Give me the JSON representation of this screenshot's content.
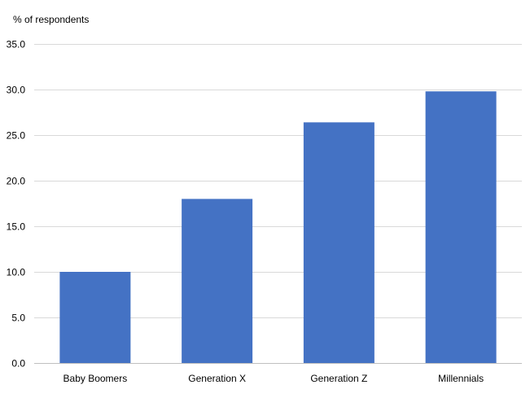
{
  "chart_data": {
    "type": "bar",
    "title": "",
    "xlabel": "",
    "ylabel": "% of respondents",
    "categories": [
      "Baby Boomers",
      "Generation X",
      "Generation Z",
      "Millennials"
    ],
    "values": [
      10.0,
      18.0,
      26.4,
      29.8
    ],
    "ylim": [
      0,
      35
    ],
    "yticks": [
      "0.0",
      "5.0",
      "10.0",
      "15.0",
      "20.0",
      "25.0",
      "30.0",
      "35.0"
    ],
    "grid": true,
    "legend": "none",
    "colors": {
      "bar": "#4472C4",
      "grid": "#D9D9D9",
      "axis": "#BFBFBF"
    }
  }
}
